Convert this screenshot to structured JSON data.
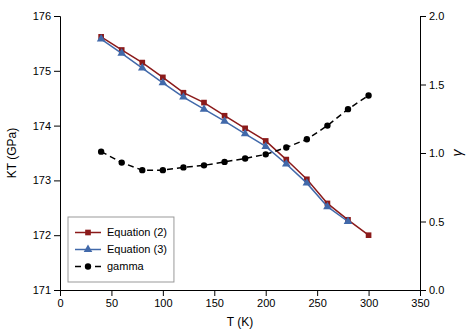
{
  "chart_data": {
    "type": "line",
    "xlabel": "T (K)",
    "ylabel": "KT (GPa)",
    "y2label": "γ",
    "xlim": [
      0,
      350
    ],
    "xticks": [
      0,
      50,
      100,
      150,
      200,
      250,
      300,
      350
    ],
    "ylim": [
      171,
      176
    ],
    "yticks": [
      171,
      172,
      173,
      174,
      175,
      176
    ],
    "y2lim": [
      0,
      2
    ],
    "y2ticks": [
      {
        "value": 0,
        "label": "0.0"
      },
      {
        "value": 0.5,
        "label": "0.5"
      },
      {
        "value": 1,
        "label": "1.0"
      },
      {
        "value": 1.5,
        "label": "1.5"
      },
      {
        "value": 2,
        "label": "2.0"
      }
    ],
    "grid": false,
    "legend": "lower left",
    "series": [
      {
        "name": "Equation (2)",
        "color": "#8B1A1A",
        "marker": "square",
        "line_style": "solid",
        "x": [
          40,
          60,
          80,
          100,
          120,
          140,
          160,
          180,
          200,
          220,
          240,
          260,
          280,
          300
        ],
        "values": [
          175.62,
          175.38,
          175.15,
          174.88,
          174.6,
          174.42,
          174.18,
          173.95,
          173.72,
          173.38,
          173.02,
          172.58,
          172.28,
          172.0
        ]
      },
      {
        "name": "Equation (3)",
        "color": "#4169AA",
        "marker": "triangle",
        "line_style": "solid",
        "x": [
          40,
          60,
          80,
          100,
          120,
          140,
          160,
          180,
          200,
          220,
          240,
          260,
          280
        ],
        "values": [
          175.58,
          175.32,
          175.05,
          174.78,
          174.52,
          174.3,
          174.08,
          173.85,
          173.62,
          173.3,
          172.95,
          172.52,
          172.25
        ]
      },
      {
        "name": "gamma",
        "color": "#000000",
        "marker": "circle",
        "line_style": "dashed",
        "axis": "y2",
        "x": [
          40,
          60,
          80,
          100,
          120,
          140,
          160,
          180,
          200,
          220,
          240,
          260,
          280,
          300
        ],
        "values": [
          1.01,
          0.93,
          0.875,
          0.875,
          0.895,
          0.91,
          0.935,
          0.96,
          0.99,
          1.04,
          1.1,
          1.2,
          1.32,
          1.42
        ]
      }
    ]
  }
}
